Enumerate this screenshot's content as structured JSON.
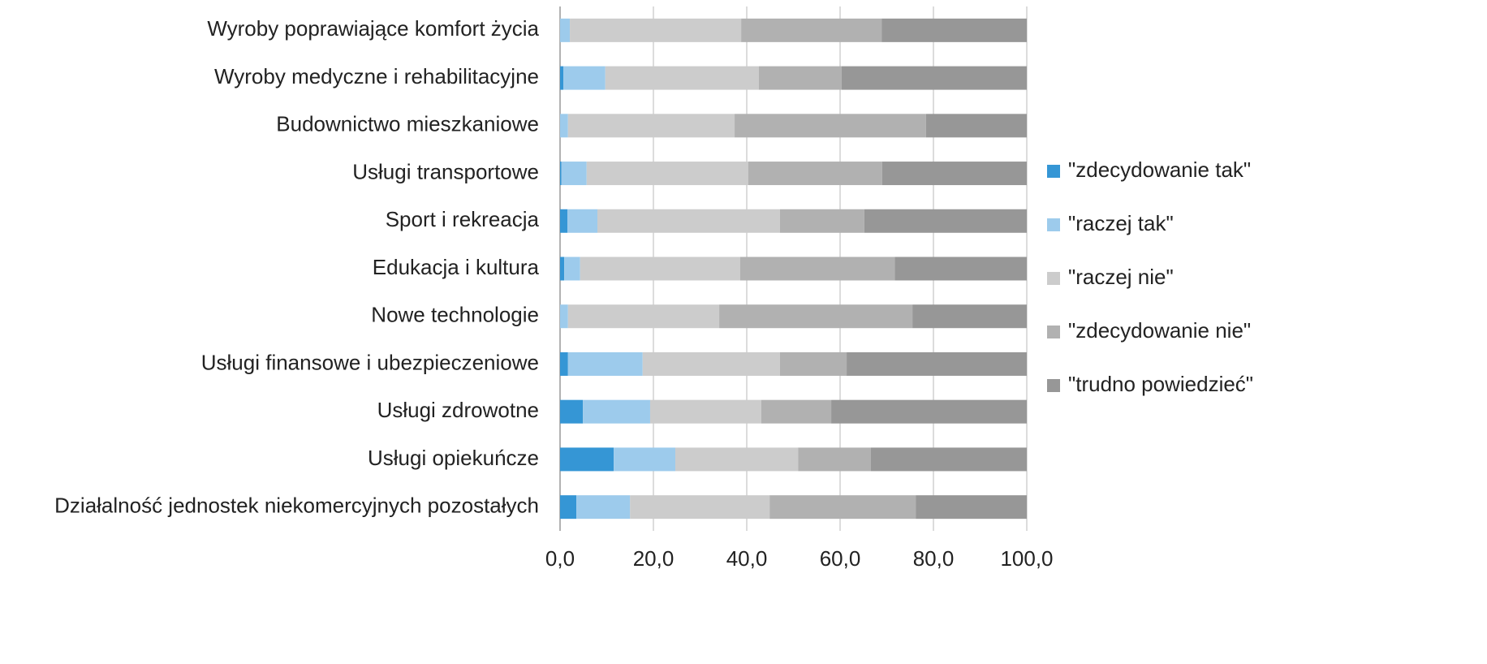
{
  "chart_data": {
    "type": "stacked_bar_horizontal",
    "categories": [
      "Wyroby poprawiające komfort życia",
      "Wyroby medyczne i rehabilitacyjne",
      "Budownictwo mieszkaniowe",
      "Usługi transportowe",
      "Sport i rekreacja",
      "Edukacja i kultura",
      "Nowe technologie",
      "Usługi finansowe i ubezpieczeniowe",
      "Usługi zdrowotne",
      "Usługi opiekuńcze",
      "Działalność jednostek niekomercyjnych pozostałych"
    ],
    "series": [
      {
        "name": "\"zdecydowanie tak\"",
        "color": "#3596d5",
        "values": [
          0,
          0.7,
          0,
          0.3,
          1.6,
          0.9,
          0,
          1.7,
          4.9,
          11.5,
          3.5
        ]
      },
      {
        "name": "\"raczej tak\"",
        "color": "#9dcbec",
        "values": [
          2.1,
          9.0,
          1.7,
          5.4,
          6.4,
          3.4,
          1.7,
          16.0,
          14.4,
          13.2,
          11.5
        ]
      },
      {
        "name": "\"raczej nie\"",
        "color": "#cccccc",
        "values": [
          36.7,
          32.9,
          35.7,
          34.6,
          39.1,
          34.3,
          32.4,
          29.4,
          23.8,
          26.3,
          29.9
        ]
      },
      {
        "name": "\"zdecydowanie nie\"",
        "color": "#b1b1b1",
        "values": [
          30.1,
          17.7,
          41.0,
          28.7,
          18.1,
          33.1,
          41.4,
          14.3,
          15.0,
          15.6,
          31.3
        ]
      },
      {
        "name": "\"trudno powiedzieć\"",
        "color": "#979797",
        "values": [
          31.1,
          39.7,
          21.6,
          31.0,
          34.8,
          28.3,
          24.5,
          38.6,
          41.9,
          33.4,
          23.8
        ]
      }
    ],
    "xlim": [
      0,
      100
    ],
    "xticks": [
      {
        "value": 0,
        "label": "0,0"
      },
      {
        "value": 20,
        "label": "20,0"
      },
      {
        "value": 40,
        "label": "40,0"
      },
      {
        "value": 60,
        "label": "60,0"
      },
      {
        "value": 80,
        "label": "80,0"
      },
      {
        "value": 100,
        "label": "100,0"
      }
    ],
    "grid": true,
    "legend": "right"
  }
}
